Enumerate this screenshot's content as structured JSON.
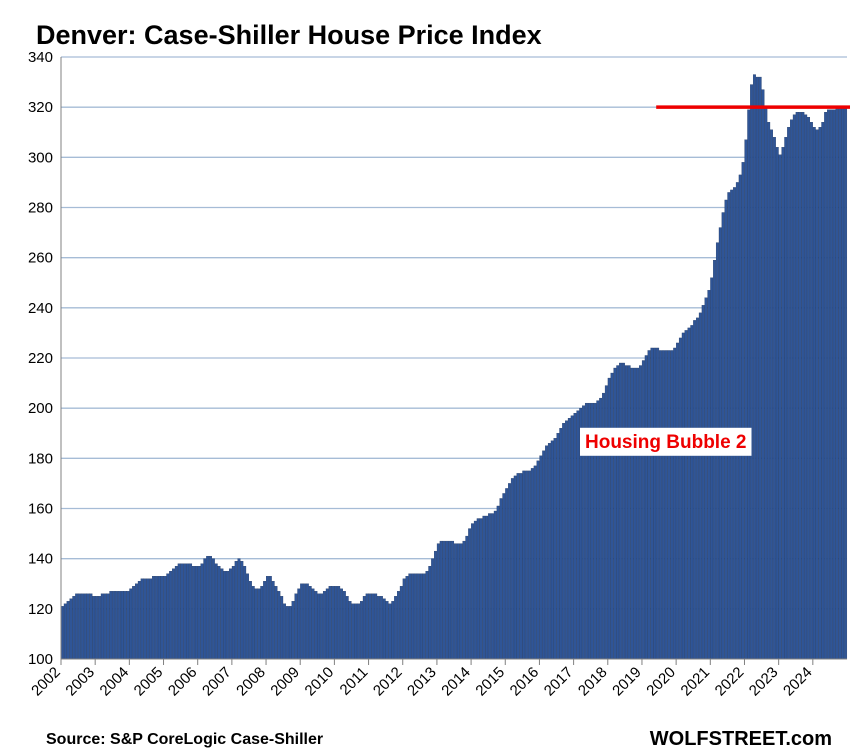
{
  "colors": {
    "bar": "#2f5597",
    "bar_edge": "#1f3864",
    "grid": "#a6bcd6",
    "annotation": "#ee0000",
    "axis": "#808080"
  },
  "source": "Source: S&P CoreLogic Case-Shiller",
  "brand": "WOLFSTREET.com",
  "chart_data": {
    "type": "bar",
    "title": "Denver: Case-Shiller House Price Index",
    "xlabel": "",
    "ylabel": "",
    "ylim": [
      100,
      340
    ],
    "yticks": [
      100,
      120,
      140,
      160,
      180,
      200,
      220,
      240,
      260,
      280,
      300,
      320,
      340
    ],
    "xtick_labels": [
      "2002",
      "2003",
      "2004",
      "2005",
      "2006",
      "2007",
      "2008",
      "2009",
      "2010",
      "2011",
      "2012",
      "2013",
      "2014",
      "2015",
      "2016",
      "2017",
      "2018",
      "2019",
      "2020",
      "2021",
      "2022",
      "2023",
      "2024"
    ],
    "grid": true,
    "x_start": "2002-01",
    "frequency": "monthly",
    "values": [
      121,
      122,
      123,
      124,
      125,
      126,
      126,
      126,
      126,
      126,
      126,
      125,
      125,
      125,
      126,
      126,
      126,
      127,
      127,
      127,
      127,
      127,
      127,
      127,
      128,
      129,
      130,
      131,
      132,
      132,
      132,
      132,
      133,
      133,
      133,
      133,
      133,
      134,
      135,
      136,
      137,
      138,
      138,
      138,
      138,
      138,
      137,
      137,
      137,
      138,
      140,
      141,
      141,
      140,
      138,
      137,
      136,
      135,
      135,
      136,
      137,
      139,
      140,
      139,
      137,
      134,
      131,
      129,
      128,
      128,
      129,
      131,
      133,
      133,
      131,
      129,
      127,
      125,
      122,
      121,
      121,
      123,
      126,
      128,
      130,
      130,
      130,
      129,
      128,
      127,
      126,
      126,
      127,
      128,
      129,
      129,
      129,
      129,
      128,
      127,
      125,
      123,
      122,
      122,
      122,
      123,
      125,
      126,
      126,
      126,
      126,
      125,
      125,
      124,
      123,
      122,
      123,
      125,
      127,
      129,
      132,
      133,
      134,
      134,
      134,
      134,
      134,
      134,
      135,
      137,
      140,
      143,
      146,
      147,
      147,
      147,
      147,
      147,
      146,
      146,
      146,
      147,
      149,
      152,
      154,
      155,
      156,
      156,
      157,
      157,
      158,
      158,
      159,
      161,
      164,
      166,
      168,
      170,
      172,
      173,
      174,
      174,
      175,
      175,
      175,
      176,
      177,
      179,
      181,
      183,
      185,
      186,
      187,
      188,
      190,
      192,
      194,
      195,
      196,
      197,
      198,
      199,
      200,
      201,
      202,
      202,
      202,
      202,
      203,
      204,
      206,
      209,
      212,
      214,
      216,
      217,
      218,
      218,
      217,
      217,
      216,
      216,
      216,
      217,
      219,
      221,
      223,
      224,
      224,
      224,
      223,
      223,
      223,
      223,
      223,
      224,
      226,
      228,
      230,
      231,
      232,
      233,
      235,
      236,
      238,
      241,
      244,
      247,
      252,
      259,
      266,
      272,
      278,
      283,
      286,
      287,
      288,
      290,
      293,
      298,
      307,
      319,
      329,
      333,
      332,
      332,
      327,
      320,
      314,
      311,
      308,
      304,
      301,
      304,
      308,
      312,
      315,
      317,
      318,
      318,
      318,
      317,
      316,
      314,
      312,
      311,
      312,
      314,
      318,
      319,
      319,
      319,
      320,
      320,
      320,
      320
    ],
    "reference_line": {
      "value": 320,
      "from": "2019-06",
      "to": "end"
    },
    "annotation": {
      "text": "Housing Bubble 2"
    }
  }
}
